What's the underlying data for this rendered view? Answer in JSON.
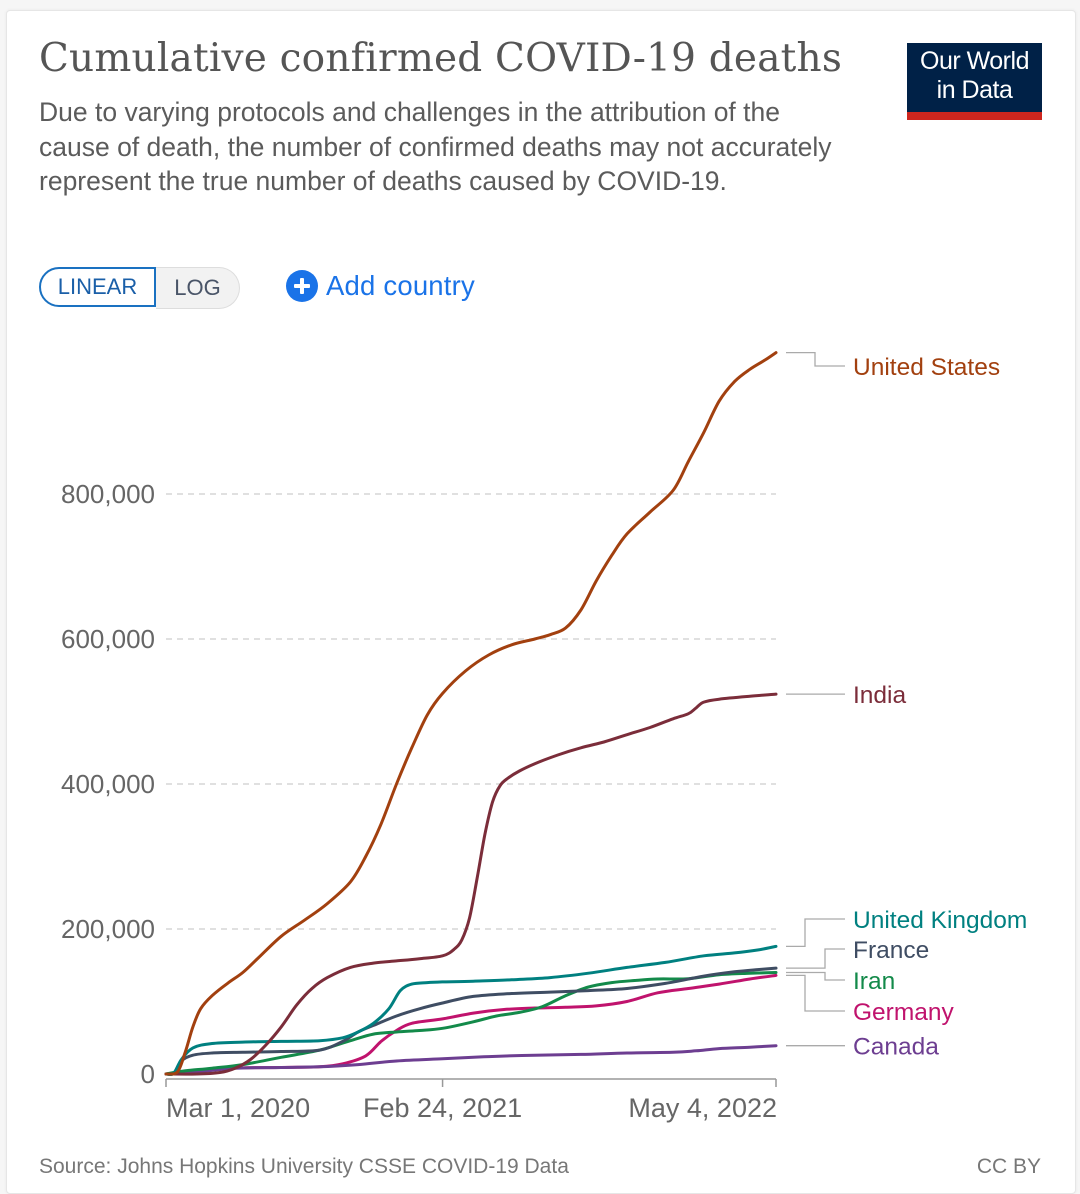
{
  "header": {
    "title": "Cumulative confirmed COVID-19 deaths",
    "subtitle": "Due to varying protocols and challenges in the attribution of the cause of death, the number of confirmed deaths may not accurately represent the true number of deaths caused by COVID-19.",
    "logo_line1": "Our World",
    "logo_line2": "in Data"
  },
  "controls": {
    "scale_options": [
      "LINEAR",
      "LOG"
    ],
    "active_scale": "LINEAR",
    "add_country_label": "Add country",
    "add_icon": "plus-circle-icon"
  },
  "colors": {
    "accent": "#1a73e8",
    "logo_bg": "#002147",
    "logo_bar": "#ce261e"
  },
  "footer": {
    "source": "Source: Johns Hopkins University CSSE COVID-19 Data",
    "license": "CC BY"
  },
  "chart_data": {
    "type": "line",
    "title": "Cumulative confirmed COVID-19 deaths",
    "xlabel": "",
    "ylabel": "",
    "x_unit": "days since Mar 1, 2020",
    "x_range": [
      0,
      794
    ],
    "ylim": [
      0,
      1000000
    ],
    "grid": "horizontal dashed",
    "y_ticks": [
      {
        "value": 0,
        "label": "0"
      },
      {
        "value": 200000,
        "label": "200,000"
      },
      {
        "value": 400000,
        "label": "400,000"
      },
      {
        "value": 600000,
        "label": "600,000"
      },
      {
        "value": 800000,
        "label": "800,000"
      }
    ],
    "x_ticks": [
      {
        "value": 0,
        "label": "Mar 1, 2020"
      },
      {
        "value": 360,
        "label": "Feb 24, 2021"
      },
      {
        "value": 794,
        "label": "May 4, 2022"
      }
    ],
    "legend_placement": "right (end-of-line labels)",
    "series": [
      {
        "name": "United States",
        "color": "#a2400f",
        "x": [
          0,
          15,
          25,
          35,
          45,
          60,
          80,
          100,
          120,
          150,
          180,
          210,
          240,
          260,
          280,
          300,
          320,
          340,
          360,
          390,
          420,
          450,
          480,
          500,
          520,
          540,
          560,
          580,
          600,
          630,
          660,
          680,
          700,
          720,
          740,
          760,
          780,
          794
        ],
        "y": [
          0,
          3000,
          30000,
          65000,
          90000,
          108000,
          125000,
          140000,
          160000,
          190000,
          212000,
          235000,
          265000,
          300000,
          345000,
          400000,
          450000,
          495000,
          525000,
          556000,
          578000,
          592000,
          600000,
          606000,
          615000,
          640000,
          680000,
          715000,
          745000,
          775000,
          805000,
          845000,
          885000,
          928000,
          955000,
          972000,
          985000,
          995000
        ]
      },
      {
        "name": "India",
        "color": "#7b2d3a",
        "x": [
          0,
          40,
          70,
          90,
          110,
          130,
          150,
          170,
          190,
          210,
          240,
          270,
          300,
          330,
          360,
          375,
          385,
          395,
          405,
          415,
          425,
          435,
          445,
          460,
          480,
          510,
          540,
          570,
          600,
          630,
          660,
          680,
          690,
          700,
          720,
          760,
          794
        ],
        "y": [
          0,
          0,
          2000,
          8000,
          20000,
          40000,
          65000,
          95000,
          118000,
          133000,
          147000,
          153000,
          156000,
          159000,
          163000,
          172000,
          185000,
          215000,
          270000,
          330000,
          375000,
          398000,
          408000,
          418000,
          428000,
          440000,
          450000,
          458000,
          468000,
          478000,
          490000,
          497000,
          505000,
          513000,
          517000,
          521000,
          524000
        ]
      },
      {
        "name": "United Kingdom",
        "color": "#008080",
        "x": [
          0,
          10,
          20,
          35,
          60,
          100,
          150,
          200,
          230,
          250,
          270,
          290,
          305,
          320,
          340,
          360,
          400,
          450,
          500,
          550,
          600,
          650,
          700,
          740,
          770,
          794
        ],
        "y": [
          0,
          1000,
          20000,
          36000,
          42000,
          44000,
          45000,
          46000,
          50000,
          58000,
          70000,
          90000,
          115000,
          124000,
          126000,
          127000,
          128000,
          130000,
          133000,
          139000,
          147000,
          154000,
          163000,
          167000,
          171000,
          176000
        ]
      },
      {
        "name": "France",
        "color": "#3f4d63",
        "x": [
          0,
          10,
          20,
          35,
          60,
          100,
          150,
          200,
          230,
          250,
          270,
          300,
          330,
          360,
          400,
          450,
          500,
          550,
          600,
          650,
          700,
          740,
          770,
          794
        ],
        "y": [
          0,
          1000,
          18000,
          26000,
          29000,
          30000,
          31000,
          33000,
          45000,
          58000,
          67000,
          80000,
          90000,
          98000,
          107000,
          111000,
          113000,
          115000,
          118000,
          125000,
          135000,
          141000,
          144000,
          146000
        ]
      },
      {
        "name": "Iran",
        "color": "#138a4a",
        "x": [
          0,
          10,
          30,
          60,
          100,
          150,
          200,
          240,
          270,
          300,
          330,
          360,
          400,
          430,
          460,
          490,
          520,
          550,
          580,
          610,
          640,
          680,
          720,
          760,
          794
        ],
        "y": [
          0,
          2000,
          5000,
          8000,
          13000,
          23000,
          33000,
          46000,
          55000,
          58000,
          60000,
          63000,
          72000,
          80000,
          85000,
          93000,
          108000,
          120000,
          126000,
          129000,
          131000,
          131500,
          137000,
          139000,
          140000
        ]
      },
      {
        "name": "Germany",
        "color": "#c0136d",
        "x": [
          0,
          40,
          80,
          150,
          200,
          230,
          260,
          280,
          300,
          320,
          360,
          400,
          440,
          480,
          520,
          560,
          600,
          640,
          680,
          720,
          760,
          794
        ],
        "y": [
          0,
          3000,
          8000,
          9000,
          10000,
          14000,
          25000,
          45000,
          60000,
          70000,
          76000,
          84000,
          89000,
          91000,
          92000,
          94000,
          100000,
          112000,
          118000,
          124000,
          131000,
          136000
        ]
      },
      {
        "name": "Canada",
        "color": "#6d3e91",
        "x": [
          0,
          20,
          50,
          90,
          150,
          200,
          250,
          300,
          360,
          420,
          480,
          540,
          600,
          660,
          690,
          720,
          760,
          794
        ],
        "y": [
          0,
          1000,
          4000,
          8000,
          9000,
          10000,
          13000,
          18000,
          21000,
          24000,
          26000,
          27000,
          29000,
          30000,
          32000,
          35000,
          37000,
          39000
        ]
      }
    ],
    "end_labels": [
      {
        "name": "United States",
        "color": "#a2400f"
      },
      {
        "name": "India",
        "color": "#7b2d3a"
      },
      {
        "name": "United Kingdom",
        "color": "#008080"
      },
      {
        "name": "France",
        "color": "#3f4d63"
      },
      {
        "name": "Iran",
        "color": "#138a4a"
      },
      {
        "name": "Germany",
        "color": "#c0136d"
      },
      {
        "name": "Canada",
        "color": "#6d3e91"
      }
    ]
  }
}
